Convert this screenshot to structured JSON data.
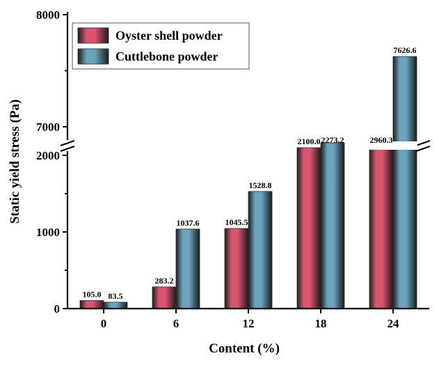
{
  "chart_data": {
    "type": "bar",
    "categories": [
      "0",
      "6",
      "12",
      "18",
      "24"
    ],
    "xlabel": "Content (%)",
    "ylabel": "Static yield stress (Pa)",
    "y_axis_break": {
      "lower_range": [
        0,
        2100
      ],
      "upper_range": [
        6900,
        8000
      ]
    },
    "y_ticks": [
      0,
      1000,
      2000,
      7000,
      8000
    ],
    "y_tick_labels": [
      "0",
      "1000",
      "2000",
      "7000",
      "8000"
    ],
    "legend_position": "top-left",
    "series": [
      {
        "name": "Oyster shell powder",
        "values": [
          105.0,
          283.2,
          1045.5,
          2100.0,
          2960.3
        ],
        "value_labels": [
          "105.0",
          "283.2",
          "1045.5",
          "2100.0",
          "2960.3"
        ],
        "color": "#d9556f"
      },
      {
        "name": "Cuttlebone powder",
        "values": [
          83.5,
          1037.6,
          1528.8,
          2273.2,
          7626.6
        ],
        "value_labels": [
          "83.5",
          "1037.6",
          "1528.8",
          "2273.2",
          "7626.6"
        ],
        "color": "#6aa3bc"
      }
    ]
  }
}
